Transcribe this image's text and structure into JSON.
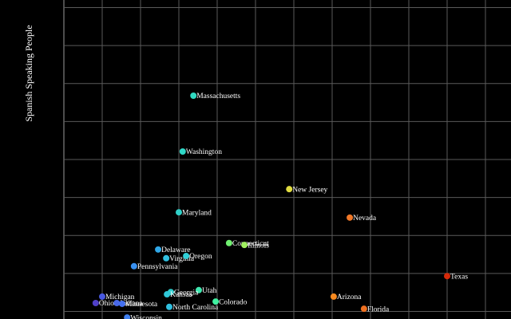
{
  "chart_data": {
    "type": "scatter",
    "y_label": "Spanish Speaking People",
    "xlim": [
      0,
      11.5
    ],
    "ylim": [
      -0.2,
      8.2
    ],
    "xticks": [
      0,
      1,
      2,
      3,
      4,
      5,
      6,
      7,
      8,
      9,
      10,
      11
    ],
    "yticks": [
      0,
      1,
      2,
      3,
      4,
      5,
      6,
      7,
      8
    ],
    "grid": true,
    "points": [
      {
        "name": "Massachusetts",
        "x": 3.38,
        "y": 5.68,
        "color": "#30d8c0"
      },
      {
        "name": "Washington",
        "x": 3.1,
        "y": 4.21,
        "color": "#30d8c8"
      },
      {
        "name": "New Jersey",
        "x": 5.88,
        "y": 3.22,
        "color": "#e0dc40"
      },
      {
        "name": "Maryland",
        "x": 3.0,
        "y": 2.61,
        "color": "#30d0c8"
      },
      {
        "name": "Nevada",
        "x": 7.46,
        "y": 2.47,
        "color": "#f07828"
      },
      {
        "name": "Connecticut",
        "x": 4.31,
        "y": 1.8,
        "color": "#70f070"
      },
      {
        "name": "Illinois",
        "x": 4.71,
        "y": 1.75,
        "color": "#a0f060"
      },
      {
        "name": "Delaware",
        "x": 2.46,
        "y": 1.63,
        "color": "#30a8e8"
      },
      {
        "name": "Virginia",
        "x": 2.67,
        "y": 1.4,
        "color": "#30c0e0"
      },
      {
        "name": "Oregon",
        "x": 3.19,
        "y": 1.46,
        "color": "#30d0d8"
      },
      {
        "name": "Pennsylvania",
        "x": 1.83,
        "y": 1.19,
        "color": "#3890f0"
      },
      {
        "name": "Texas",
        "x": 10.0,
        "y": 0.93,
        "color": "#d62a0a"
      },
      {
        "name": "Utah",
        "x": 3.52,
        "y": 0.56,
        "color": "#40e8b0"
      },
      {
        "name": "Georgia",
        "x": 2.79,
        "y": 0.51,
        "color": "#30d0d0"
      },
      {
        "name": "Kansas",
        "x": 2.69,
        "y": 0.45,
        "color": "#30c8d8"
      },
      {
        "name": "Arizona",
        "x": 7.04,
        "y": 0.39,
        "color": "#f88a20"
      },
      {
        "name": "Michigan",
        "x": 1.0,
        "y": 0.39,
        "color": "#4858e0"
      },
      {
        "name": "Colorado",
        "x": 3.96,
        "y": 0.26,
        "color": "#40f0a0"
      },
      {
        "name": "Ohio",
        "x": 0.83,
        "y": 0.22,
        "color": "#5040c8"
      },
      {
        "name": "Indiana",
        "x": 1.38,
        "y": 0.22,
        "color": "#4868e8"
      },
      {
        "name": "Minnesota",
        "x": 1.52,
        "y": 0.2,
        "color": "#4470f0"
      },
      {
        "name": "Florida",
        "x": 7.83,
        "y": 0.07,
        "color": "#f07020"
      },
      {
        "name": "North Carolina",
        "x": 2.75,
        "y": 0.12,
        "color": "#30c0e0"
      },
      {
        "name": "Wisconsin",
        "x": 1.65,
        "y": -0.16,
        "color": "#4080f0"
      }
    ]
  }
}
